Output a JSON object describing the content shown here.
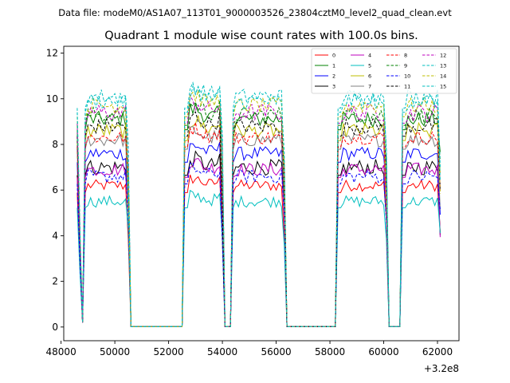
{
  "chart_data": {
    "type": "line",
    "suptitle": "Data file: modeM0/AS1A07_113T01_9000003526_23804cztM0_level2_quad_clean.evt",
    "title": "Quadrant 1 module wise count rates with 100.0s bins.",
    "xlabel": "",
    "ylabel": "",
    "x_offset_label": "+3.2e8",
    "xlim": [
      48100,
      62800
    ],
    "ylim": [
      -0.6,
      12.3
    ],
    "x_ticks": [
      48000,
      50000,
      52000,
      54000,
      56000,
      58000,
      60000,
      62000
    ],
    "x_tick_labels": [
      "48000",
      "50000",
      "52000",
      "54000",
      "56000",
      "58000",
      "60000",
      "62000"
    ],
    "y_ticks": [
      0,
      2,
      4,
      6,
      8,
      10,
      12
    ],
    "y_tick_labels": [
      "0",
      "2",
      "4",
      "6",
      "8",
      "10",
      "12"
    ],
    "grid": false,
    "legend_position": "top-right",
    "bin_width": 100,
    "segments": [
      {
        "start": 48600,
        "end": 50500
      },
      {
        "start": 52600,
        "end": 54000
      },
      {
        "start": 54350,
        "end": 56300
      },
      {
        "start": 58300,
        "end": 60100
      },
      {
        "start": 60700,
        "end": 62100
      }
    ],
    "series": [
      {
        "name": "0",
        "color": "#ff0000",
        "dash": "solid",
        "level": 6.2,
        "noise": 0.25
      },
      {
        "name": "1",
        "color": "#008000",
        "dash": "solid",
        "level": 9.1,
        "noise": 0.35
      },
      {
        "name": "2",
        "color": "#0000ff",
        "dash": "solid",
        "level": 7.6,
        "noise": 0.3
      },
      {
        "name": "3",
        "color": "#000000",
        "dash": "solid",
        "level": 7.0,
        "noise": 0.35
      },
      {
        "name": "4",
        "color": "#bf00bf",
        "dash": "solid",
        "level": 6.9,
        "noise": 0.3
      },
      {
        "name": "5",
        "color": "#00bfbf",
        "dash": "solid",
        "level": 5.5,
        "noise": 0.25
      },
      {
        "name": "6",
        "color": "#bfbf00",
        "dash": "solid",
        "level": 8.6,
        "noise": 0.35
      },
      {
        "name": "7",
        "color": "#808080",
        "dash": "solid",
        "level": 8.2,
        "noise": 0.3
      },
      {
        "name": "8",
        "color": "#ff0000",
        "dash": "dashed",
        "level": 8.3,
        "noise": 0.3
      },
      {
        "name": "9",
        "color": "#008000",
        "dash": "dashed",
        "level": 9.3,
        "noise": 0.35
      },
      {
        "name": "10",
        "color": "#0000ff",
        "dash": "dashed",
        "level": 6.6,
        "noise": 0.3
      },
      {
        "name": "11",
        "color": "#000000",
        "dash": "dashed",
        "level": 8.8,
        "noise": 0.35
      },
      {
        "name": "12",
        "color": "#bf00bf",
        "dash": "dashed",
        "level": 9.4,
        "noise": 0.4
      },
      {
        "name": "13",
        "color": "#00bfbf",
        "dash": "dashed",
        "level": 10.1,
        "noise": 0.35
      },
      {
        "name": "14",
        "color": "#bfbf00",
        "dash": "dashed",
        "level": 9.7,
        "noise": 0.35
      },
      {
        "name": "15",
        "color": "#00bfbf",
        "dash": "dashed",
        "level": 9.9,
        "noise": 0.35
      }
    ]
  }
}
